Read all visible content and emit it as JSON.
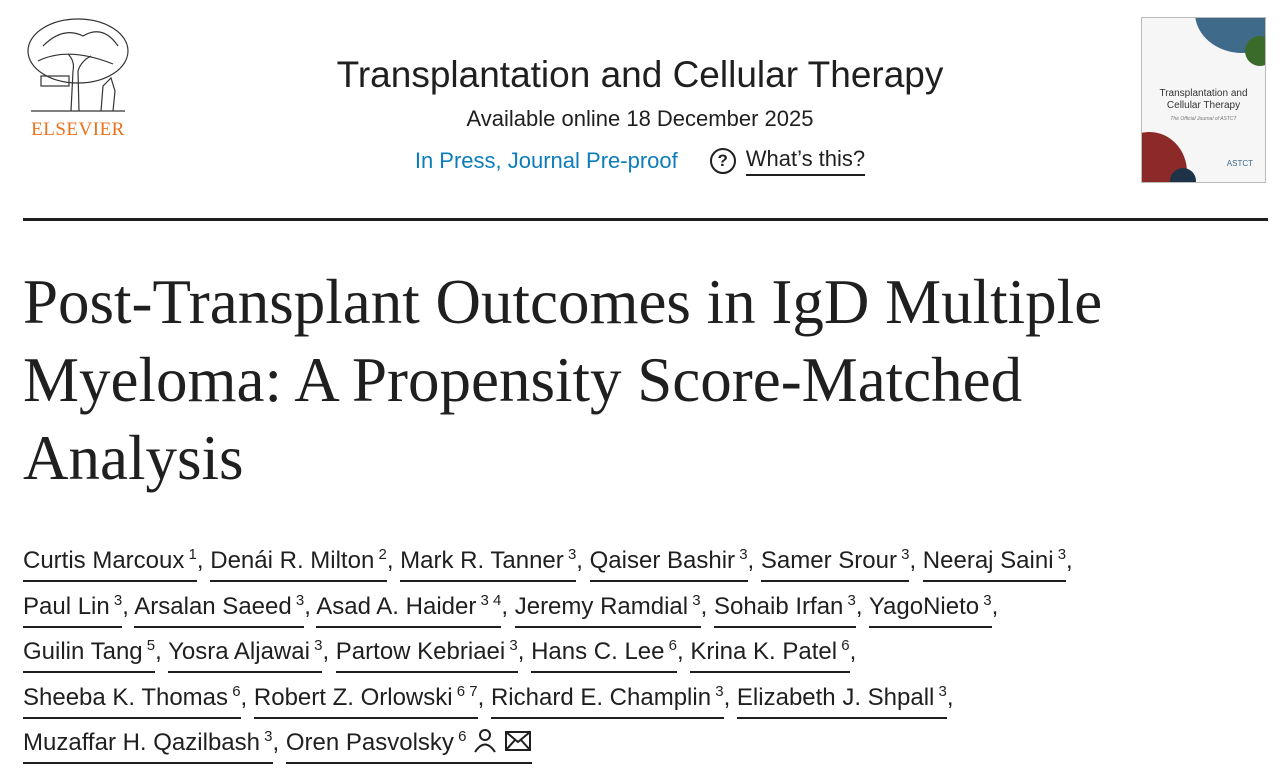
{
  "publisher": {
    "name": "ELSEVIER",
    "brand_color": "#e9711c"
  },
  "journal": {
    "title": "Transplantation and Cellular Therapy",
    "available": "Available online 18 December 2025",
    "status": "In Press, Journal Pre-proof",
    "whats_this": "What’s this?",
    "cover": {
      "title": "Transplantation and Cellular Therapy",
      "subtitle": "The Official Journal of ASTCT",
      "brand": "ASTCT"
    }
  },
  "article": {
    "title_lines": [
      "Post-Transplant Outcomes in IgD Multiple",
      "Myeloma: A Propensity Score-Matched",
      "Analysis"
    ]
  },
  "authors": [
    [
      {
        "name": "Curtis Marcoux",
        "aff": "1"
      },
      {
        "name": "Denái R. Milton",
        "aff": "2"
      },
      {
        "name": "Mark R. Tanner",
        "aff": "3"
      },
      {
        "name": "Qaiser Bashir",
        "aff": "3"
      },
      {
        "name": "Samer Srour",
        "aff": "3"
      },
      {
        "name": "Neeraj Saini",
        "aff": "3"
      }
    ],
    [
      {
        "name": "Paul Lin",
        "aff": "3"
      },
      {
        "name": "Arsalan Saeed",
        "aff": "3"
      },
      {
        "name": "Asad A. Haider",
        "aff": "3 4"
      },
      {
        "name": "Jeremy Ramdial",
        "aff": "3"
      },
      {
        "name": "Sohaib Irfan",
        "aff": "3"
      },
      {
        "name": "YagoNieto",
        "aff": "3"
      }
    ],
    [
      {
        "name": "Guilin Tang",
        "aff": "5"
      },
      {
        "name": "Yosra Aljawai",
        "aff": "3"
      },
      {
        "name": "Partow Kebriaei",
        "aff": "3"
      },
      {
        "name": "Hans C. Lee",
        "aff": "6"
      },
      {
        "name": "Krina K. Patel",
        "aff": "6"
      }
    ],
    [
      {
        "name": "Sheeba K. Thomas",
        "aff": "6"
      },
      {
        "name": "Robert Z. Orlowski",
        "aff": "6 7"
      },
      {
        "name": "Richard E. Champlin",
        "aff": "3"
      },
      {
        "name": "Elizabeth J. Shpall",
        "aff": "3"
      }
    ],
    [
      {
        "name": "Muzaffar H. Qazilbash",
        "aff": "3"
      },
      {
        "name": "Oren Pasvolsky",
        "aff": "6",
        "corresponding": true
      }
    ]
  ]
}
